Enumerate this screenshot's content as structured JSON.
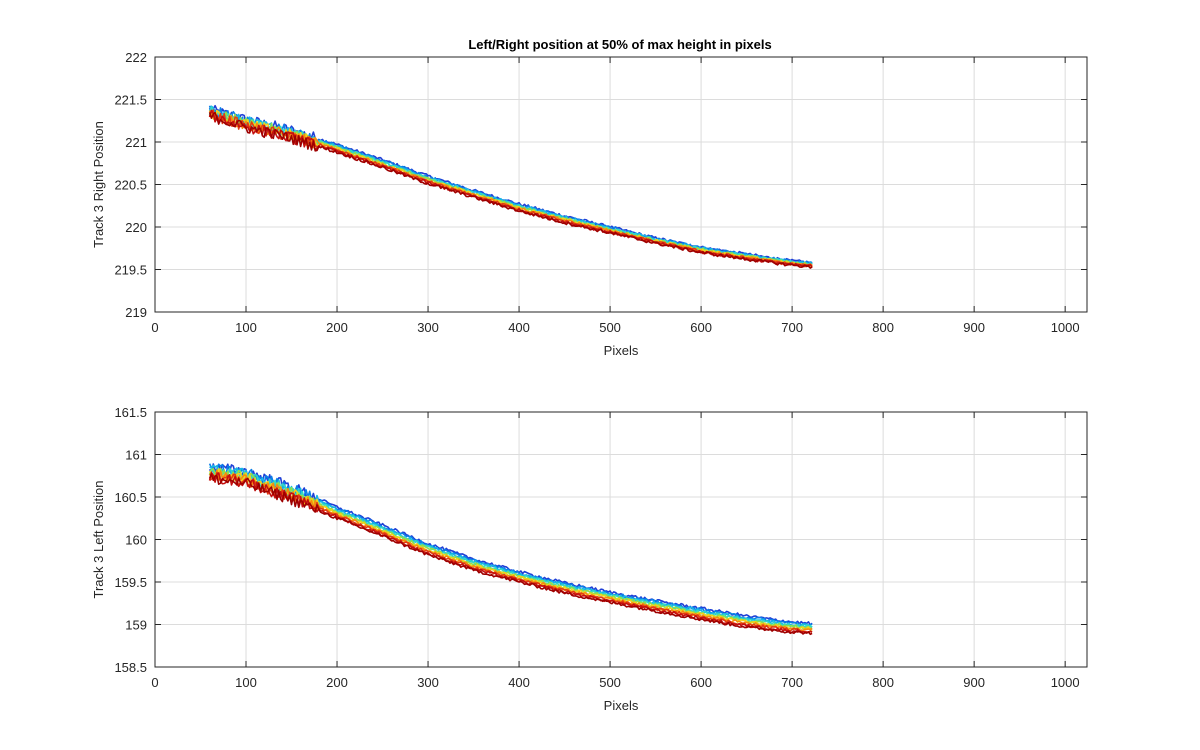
{
  "figure": {
    "title": "Left/Right position at 50% of max height in pixels"
  },
  "chart_data": [
    {
      "type": "line",
      "title": "Left/Right position at 50% of max height in pixels",
      "xlabel": "Pixels",
      "ylabel": "Track 3 Right Position",
      "xlim": [
        0,
        1024
      ],
      "ylim": [
        219,
        222
      ],
      "xticks": [
        0,
        100,
        200,
        300,
        400,
        500,
        600,
        700,
        800,
        900,
        1000
      ],
      "yticks": [
        219,
        219.5,
        220,
        220.5,
        221,
        221.5,
        222
      ],
      "xtick_labels": [
        "0",
        "100",
        "200",
        "300",
        "400",
        "500",
        "600",
        "700",
        "800",
        "900",
        "1000"
      ],
      "ytick_labels": [
        "219",
        "219.5",
        "220",
        "220.5",
        "221",
        "221.5",
        "222"
      ],
      "grid": true,
      "legend": "none",
      "colormap": "jet",
      "series_colors": [
        "#1f3fd6",
        "#0a7fe8",
        "#16b6e6",
        "#33d9c4",
        "#8fe04a",
        "#f2d21b",
        "#f58b0f",
        "#e33b12",
        "#c40f0f",
        "#9e0000"
      ],
      "x": [
        60,
        100,
        150,
        200,
        250,
        300,
        350,
        400,
        450,
        500,
        550,
        600,
        650,
        700,
        722
      ],
      "series": [
        {
          "values": [
            221.38,
            221.26,
            221.14,
            220.97,
            220.79,
            220.6,
            220.43,
            220.27,
            220.13,
            220.0,
            219.87,
            219.76,
            219.68,
            219.6,
            219.58
          ]
        },
        {
          "values": [
            221.35,
            221.22,
            221.09,
            220.93,
            220.75,
            220.56,
            220.4,
            220.24,
            220.1,
            219.97,
            219.85,
            219.74,
            219.66,
            219.58,
            219.56
          ]
        },
        {
          "values": [
            221.33,
            221.19,
            221.06,
            220.9,
            220.72,
            220.53,
            220.37,
            220.21,
            220.07,
            219.95,
            219.83,
            219.72,
            219.64,
            219.56,
            219.54
          ]
        },
        {
          "values": [
            221.31,
            221.17,
            221.04,
            220.88,
            220.7,
            220.51,
            220.35,
            220.19,
            220.05,
            219.93,
            219.81,
            219.7,
            219.62,
            219.55,
            219.53
          ]
        }
      ]
    },
    {
      "type": "line",
      "xlabel": "Pixels",
      "ylabel": "Track 3 Left Position",
      "xlim": [
        0,
        1024
      ],
      "ylim": [
        158.5,
        161.5
      ],
      "xticks": [
        0,
        100,
        200,
        300,
        400,
        500,
        600,
        700,
        800,
        900,
        1000
      ],
      "yticks": [
        158.5,
        159,
        159.5,
        160,
        160.5,
        161,
        161.5
      ],
      "xtick_labels": [
        "0",
        "100",
        "200",
        "300",
        "400",
        "500",
        "600",
        "700",
        "800",
        "900",
        "1000"
      ],
      "ytick_labels": [
        "158.5",
        "159",
        "159.5",
        "160",
        "160.5",
        "161",
        "161.5"
      ],
      "grid": true,
      "legend": "none",
      "colormap": "jet",
      "series_colors": [
        "#1f3fd6",
        "#0a7fe8",
        "#16b6e6",
        "#33d9c4",
        "#8fe04a",
        "#f2d21b",
        "#f58b0f",
        "#e33b12",
        "#c40f0f",
        "#9e0000"
      ],
      "x": [
        60,
        100,
        150,
        200,
        250,
        300,
        350,
        400,
        450,
        500,
        550,
        600,
        650,
        700,
        722
      ],
      "series": [
        {
          "values": [
            160.85,
            160.8,
            160.62,
            160.38,
            160.17,
            159.95,
            159.77,
            159.62,
            159.49,
            159.38,
            159.28,
            159.19,
            159.1,
            159.03,
            159.01
          ]
        },
        {
          "values": [
            160.8,
            160.74,
            160.56,
            160.32,
            160.11,
            159.89,
            159.71,
            159.57,
            159.44,
            159.33,
            159.23,
            159.13,
            159.04,
            158.97,
            158.96
          ]
        },
        {
          "values": [
            160.76,
            160.7,
            160.51,
            160.28,
            160.07,
            159.85,
            159.67,
            159.53,
            159.4,
            159.29,
            159.19,
            159.09,
            159.0,
            158.93,
            158.92
          ]
        },
        {
          "values": [
            160.72,
            160.66,
            160.47,
            160.25,
            160.04,
            159.82,
            159.64,
            159.5,
            159.37,
            159.26,
            159.16,
            159.06,
            158.97,
            158.91,
            158.9
          ]
        }
      ]
    }
  ]
}
